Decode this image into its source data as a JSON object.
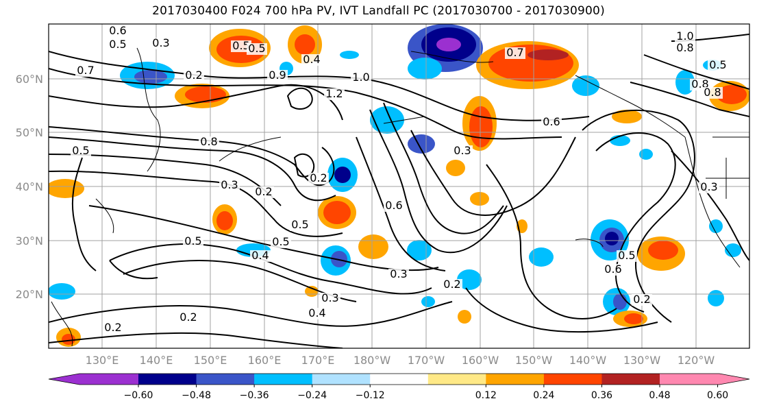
{
  "title": "2017030400 F024 700 hPa PV, IVT Landfall PC (2017030700 - 2017030900)",
  "map": {
    "lat_labels": [
      "60°N",
      "50°N",
      "40°N",
      "30°N",
      "20°N"
    ],
    "lon_labels": [
      "130°E",
      "140°E",
      "150°E",
      "160°E",
      "170°E",
      "180°W",
      "170°W",
      "160°W",
      "150°W",
      "140°W",
      "130°W",
      "120°W"
    ],
    "contour_labels": [
      "0.6",
      "0.5",
      "0.3",
      "0.7",
      "0.2",
      "0.5",
      "0.4",
      "0.9",
      "1.0",
      "1.2",
      "0.8",
      "0.5",
      "1.0",
      "0.8",
      "0.7",
      "0.5",
      "0.6",
      "0.3",
      "0.5",
      "0.8",
      "0.3",
      "0.2",
      "0.6",
      "0.5",
      "0.4",
      "0.3",
      "0.2",
      "0.3",
      "0.4",
      "0.2",
      "0.2",
      "0.5",
      "0.6",
      "0.5",
      "0.2",
      "0.3",
      "0.8",
      "0.2",
      "0.5"
    ],
    "grid": true
  },
  "colorbar": {
    "colors": [
      "#9b30d0",
      "#00008b",
      "#3a55c8",
      "#00bfff",
      "#b0e2ff",
      "#ffffff",
      "#ffe987",
      "#ffa500",
      "#ff4500",
      "#b22222",
      "#ff88b0"
    ],
    "tick_labels": [
      "−0.60",
      "−0.48",
      "−0.36",
      "−0.24",
      "−0.12",
      "0.12",
      "0.24",
      "0.36",
      "0.48",
      "0.60"
    ],
    "extend": "both"
  }
}
